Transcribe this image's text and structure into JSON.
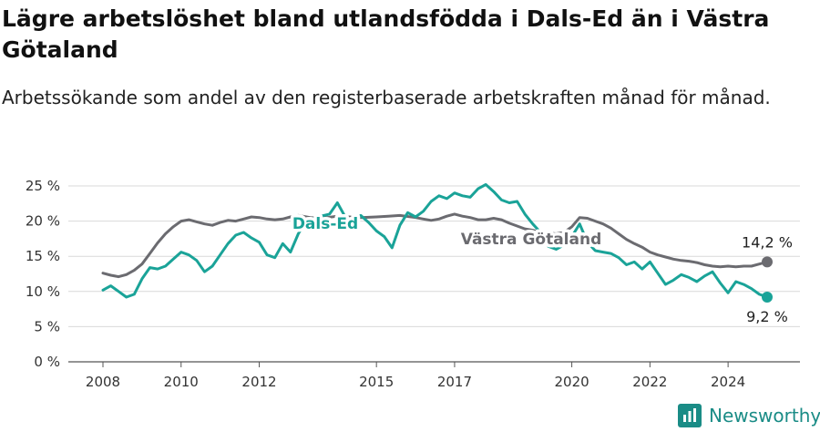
{
  "header": {
    "title": "Lägre arbetslöshet bland utlandsfödda i Dals-Ed än i Västra Götaland",
    "subtitle": "Arbetssökande som andel av den registerbaserade arbetskraften månad för månad."
  },
  "brand": {
    "name": "Newsworthy",
    "color": "#1a8c86",
    "icon": "newsworthy-logo-icon"
  },
  "chart_data": {
    "type": "line",
    "title": "Lägre arbetslöshet bland utlandsfödda i Dals-Ed än i Västra Götaland",
    "subtitle": "Arbetssökande som andel av den registerbaserade arbetskraften månad för månad.",
    "xlabel": "",
    "ylabel": "",
    "xlim": [
      2008.0,
      2025.0
    ],
    "ylim": [
      0,
      25
    ],
    "x_ticks": [
      2008,
      2010,
      2012,
      2015,
      2017,
      2020,
      2022,
      2024
    ],
    "x_tick_labels": [
      "2008",
      "2010",
      "2012",
      "2015",
      "2017",
      "2020",
      "2022",
      "2024"
    ],
    "y_ticks": [
      0,
      5,
      10,
      15,
      20,
      25
    ],
    "y_tick_labels": [
      "0 %",
      "5 %",
      "10 %",
      "15 %",
      "20 %",
      "25 %"
    ],
    "grid": true,
    "legend": "none",
    "series": [
      {
        "name": "Västra Götaland",
        "color": "#6b6b70",
        "end_label": "14,2 %",
        "x": [
          2008.0,
          2008.2,
          2008.4,
          2008.6,
          2008.8,
          2009.0,
          2009.2,
          2009.4,
          2009.6,
          2009.8,
          2010.0,
          2010.2,
          2010.4,
          2010.6,
          2010.8,
          2011.0,
          2011.2,
          2011.4,
          2011.6,
          2011.8,
          2012.0,
          2012.2,
          2012.4,
          2012.6,
          2012.8,
          2013.0,
          2013.3,
          2013.6,
          2014.0,
          2014.3,
          2014.6,
          2015.0,
          2015.3,
          2015.6,
          2016.0,
          2016.2,
          2016.4,
          2016.6,
          2016.8,
          2017.0,
          2017.2,
          2017.4,
          2017.6,
          2017.8,
          2018.0,
          2018.2,
          2018.4,
          2018.6,
          2018.8,
          2019.0,
          2019.2,
          2019.4,
          2019.6,
          2019.8,
          2020.0,
          2020.2,
          2020.4,
          2020.6,
          2020.8,
          2021.0,
          2021.2,
          2021.4,
          2021.6,
          2021.8,
          2022.0,
          2022.2,
          2022.4,
          2022.6,
          2022.8,
          2023.0,
          2023.2,
          2023.4,
          2023.6,
          2023.8,
          2024.0,
          2024.2,
          2024.4,
          2024.6,
          2024.8,
          2025.0
        ],
        "y": [
          12.6,
          12.3,
          12.1,
          12.4,
          13.0,
          13.9,
          15.4,
          16.9,
          18.2,
          19.2,
          20.0,
          20.2,
          19.9,
          19.6,
          19.4,
          19.8,
          20.1,
          20.0,
          20.3,
          20.6,
          20.5,
          20.3,
          20.2,
          20.3,
          20.6,
          20.8,
          20.5,
          20.4,
          20.7,
          20.6,
          20.5,
          20.6,
          20.7,
          20.8,
          20.5,
          20.3,
          20.1,
          20.3,
          20.7,
          21.0,
          20.7,
          20.5,
          20.2,
          20.2,
          20.4,
          20.2,
          19.7,
          19.3,
          18.9,
          18.7,
          18.4,
          18.3,
          18.2,
          18.4,
          19.2,
          20.5,
          20.4,
          20.0,
          19.6,
          19.0,
          18.2,
          17.4,
          16.8,
          16.3,
          15.6,
          15.2,
          14.9,
          14.6,
          14.4,
          14.3,
          14.1,
          13.8,
          13.6,
          13.5,
          13.6,
          13.5,
          13.6,
          13.6,
          13.9,
          14.2
        ]
      },
      {
        "name": "Dals-Ed",
        "color": "#1aa398",
        "end_label": "9,2 %",
        "x": [
          2008.0,
          2008.2,
          2008.4,
          2008.6,
          2008.8,
          2009.0,
          2009.2,
          2009.4,
          2009.6,
          2009.8,
          2010.0,
          2010.2,
          2010.4,
          2010.6,
          2010.8,
          2011.0,
          2011.2,
          2011.4,
          2011.6,
          2011.8,
          2012.0,
          2012.2,
          2012.4,
          2012.6,
          2012.8,
          2013.0,
          2013.2,
          2013.5,
          2013.8,
          2014.0,
          2014.3,
          2014.6,
          2014.8,
          2015.0,
          2015.2,
          2015.4,
          2015.6,
          2015.8,
          2016.0,
          2016.2,
          2016.4,
          2016.6,
          2016.8,
          2017.0,
          2017.2,
          2017.4,
          2017.6,
          2017.8,
          2018.0,
          2018.2,
          2018.4,
          2018.6,
          2018.8,
          2019.0,
          2019.2,
          2019.4,
          2019.6,
          2019.8,
          2020.0,
          2020.2,
          2020.4,
          2020.6,
          2020.8,
          2021.0,
          2021.2,
          2021.4,
          2021.6,
          2021.8,
          2022.0,
          2022.2,
          2022.4,
          2022.6,
          2022.8,
          2023.0,
          2023.2,
          2023.4,
          2023.6,
          2023.8,
          2024.0,
          2024.2,
          2024.4,
          2024.6,
          2024.8,
          2025.0
        ],
        "y": [
          10.2,
          10.8,
          10.0,
          9.2,
          9.6,
          11.8,
          13.4,
          13.2,
          13.6,
          14.6,
          15.6,
          15.2,
          14.4,
          12.8,
          13.6,
          15.2,
          16.8,
          18.0,
          18.4,
          17.6,
          17.0,
          15.2,
          14.8,
          16.8,
          15.6,
          18.2,
          20.0,
          20.6,
          21.0,
          22.6,
          19.6,
          20.8,
          19.8,
          18.6,
          17.8,
          16.2,
          19.4,
          21.2,
          20.6,
          21.4,
          22.8,
          23.6,
          23.2,
          24.0,
          23.6,
          23.4,
          24.6,
          25.2,
          24.2,
          23.0,
          22.6,
          22.8,
          21.0,
          19.6,
          18.4,
          16.4,
          16.0,
          16.6,
          17.8,
          19.6,
          17.0,
          15.8,
          15.6,
          15.4,
          14.8,
          13.8,
          14.2,
          13.2,
          14.2,
          12.6,
          11.0,
          11.6,
          12.4,
          12.0,
          11.4,
          12.2,
          12.8,
          11.2,
          9.8,
          11.4,
          11.0,
          10.4,
          9.6,
          9.2
        ]
      }
    ]
  }
}
